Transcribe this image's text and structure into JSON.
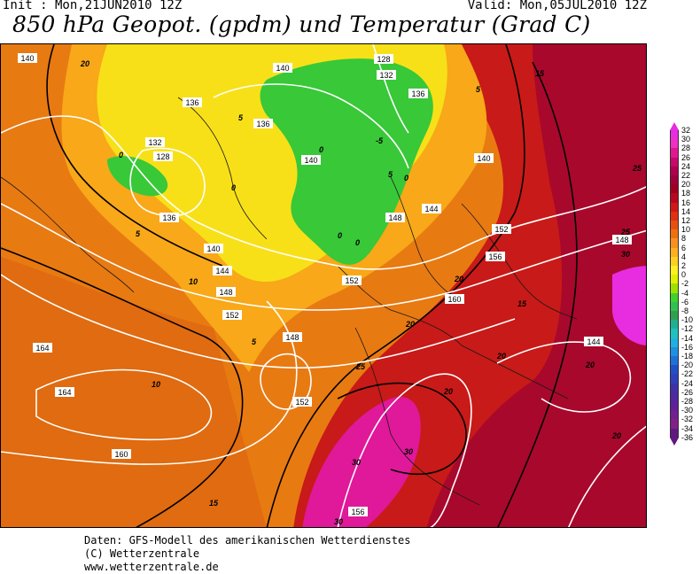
{
  "header": {
    "init": "Init : Mon,21JUN2010 12Z",
    "valid": "Valid: Mon,05JUL2010 12Z",
    "title": "850 hPa Geopot. (gpdm) und Temperatur (Grad C)"
  },
  "legend": {
    "ticks": [
      "32",
      "30",
      "28",
      "26",
      "24",
      "22",
      "20",
      "18",
      "16",
      "14",
      "12",
      "10",
      "8",
      "6",
      "4",
      "2",
      "0",
      "-2",
      "-4",
      "-6",
      "-8",
      "-10",
      "-12",
      "-14",
      "-16",
      "-18",
      "-20",
      "-22",
      "-24",
      "-26",
      "-28",
      "-30",
      "-32",
      "-34",
      "-36"
    ],
    "colors": [
      "#e82ce0",
      "#f030c0",
      "#e01890",
      "#c8086a",
      "#b00050",
      "#a0003c",
      "#a00020",
      "#b80820",
      "#d01818",
      "#e03010",
      "#e85010",
      "#f07010",
      "#f89020",
      "#fcb020",
      "#fcd020",
      "#fcf020",
      "#e0f000",
      "#a0e000",
      "#40d030",
      "#30c050",
      "#30a050",
      "#20b090",
      "#20c0c0",
      "#20b0e0",
      "#2090e0",
      "#2070d8",
      "#2050c8",
      "#3040b8",
      "#4030a8",
      "#5028a0",
      "#602098",
      "#702090",
      "#802088",
      "#601880"
    ]
  },
  "map_labels": {
    "geopotential": [
      "140",
      "128",
      "132",
      "136",
      "136",
      "132",
      "128",
      "136",
      "140",
      "140",
      "136",
      "140",
      "144",
      "144",
      "148",
      "152",
      "152",
      "156",
      "160",
      "148",
      "152",
      "164",
      "164",
      "160",
      "152",
      "156",
      "144",
      "148",
      "140",
      "148"
    ],
    "temperature": [
      "0",
      "5",
      "5",
      "0",
      "0",
      "-5",
      "0",
      "0",
      "0",
      "5",
      "5",
      "10",
      "10",
      "15",
      "15",
      "20",
      "20",
      "20",
      "25",
      "20",
      "30",
      "30",
      "20",
      "20",
      "25",
      "20",
      "5",
      "15",
      "30",
      "25",
      "30"
    ]
  },
  "footer": {
    "line1": "Daten: GFS-Modell des amerikanischen Wetterdienstes",
    "line2": "(C) Wetterzentrale",
    "line3": "www.wetterzentrale.de"
  }
}
